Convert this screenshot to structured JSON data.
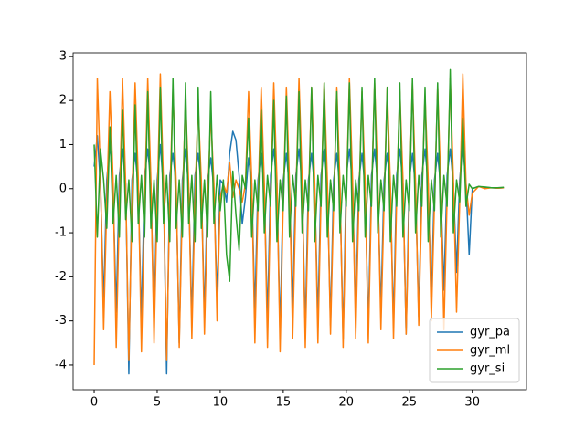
{
  "chart_data": {
    "type": "line",
    "x": [
      0,
      0.25,
      0.5,
      0.75,
      1,
      1.25,
      1.5,
      1.75,
      2,
      2.25,
      2.5,
      2.75,
      3,
      3.25,
      3.5,
      3.75,
      4,
      4.25,
      4.5,
      4.75,
      5,
      5.25,
      5.5,
      5.75,
      6,
      6.25,
      6.5,
      6.75,
      7,
      7.25,
      7.5,
      7.75,
      8,
      8.25,
      8.5,
      8.75,
      9,
      9.25,
      9.5,
      9.75,
      10,
      10.25,
      10.5,
      10.75,
      11,
      11.25,
      11.5,
      11.75,
      12,
      12.25,
      12.5,
      12.75,
      13,
      13.25,
      13.5,
      13.75,
      14,
      14.25,
      14.5,
      14.75,
      15,
      15.25,
      15.5,
      15.75,
      16,
      16.25,
      16.5,
      16.75,
      17,
      17.25,
      17.5,
      17.75,
      18,
      18.25,
      18.5,
      18.75,
      19,
      19.25,
      19.5,
      19.75,
      20,
      20.25,
      20.5,
      20.75,
      21,
      21.25,
      21.5,
      21.75,
      22,
      22.25,
      22.5,
      22.75,
      23,
      23.25,
      23.5,
      23.75,
      24,
      24.25,
      24.5,
      24.75,
      25,
      25.25,
      25.5,
      25.75,
      26,
      26.25,
      26.5,
      26.75,
      27,
      27.25,
      27.5,
      27.75,
      28,
      28.25,
      28.5,
      28.75,
      29,
      29.25,
      29.5,
      29.75,
      30,
      30.5,
      31,
      31.5,
      32,
      32.5
    ],
    "series": [
      {
        "name": "gyr_pa",
        "color": "#1f77b4",
        "values": [
          0.5,
          1.2,
          0.1,
          -2.6,
          0.2,
          1.0,
          0.0,
          -2.8,
          0.3,
          0.9,
          0.1,
          -4.2,
          0.2,
          0.8,
          0.0,
          -3.0,
          0.3,
          0.9,
          0.1,
          -3.1,
          0.2,
          1.0,
          0.0,
          -4.2,
          0.3,
          0.8,
          0.1,
          -3.5,
          0.2,
          0.9,
          0.0,
          -3.0,
          0.3,
          0.8,
          0.1,
          -2.9,
          0.2,
          0.7,
          0.0,
          -2.5,
          0.2,
          0.1,
          -0.3,
          0.8,
          1.3,
          1.1,
          0.3,
          -0.8,
          -0.2,
          0.7,
          0.1,
          -2.8,
          0.2,
          0.8,
          0.0,
          -3.0,
          0.3,
          0.9,
          0.1,
          -3.3,
          0.2,
          0.8,
          0.0,
          -2.7,
          0.3,
          0.9,
          0.1,
          -3.2,
          0.2,
          0.8,
          0.0,
          -3.0,
          0.3,
          0.9,
          0.1,
          -3.1,
          0.2,
          0.8,
          0.0,
          -3.4,
          0.3,
          0.9,
          0.1,
          -3.0,
          0.2,
          0.8,
          0.0,
          -3.2,
          0.3,
          0.9,
          0.1,
          -2.8,
          0.2,
          0.8,
          0.0,
          -3.1,
          0.3,
          0.9,
          0.1,
          -3.3,
          0.2,
          0.8,
          0.0,
          -2.9,
          0.3,
          0.9,
          0.1,
          -2.6,
          0.2,
          0.8,
          0.0,
          -2.3,
          0.3,
          0.9,
          0.1,
          -1.9,
          0.2,
          1.0,
          0.1,
          -1.5,
          0.0,
          0.05,
          0.03,
          0.02,
          0.01,
          0.02
        ]
      },
      {
        "name": "gyr_ml",
        "color": "#ff7f0e",
        "values": [
          -4.0,
          2.5,
          0.3,
          -3.2,
          -0.3,
          2.2,
          0.2,
          -3.6,
          -0.4,
          2.5,
          0.1,
          -3.9,
          -0.3,
          2.4,
          0.2,
          -3.7,
          -0.4,
          2.5,
          0.2,
          -3.5,
          -0.3,
          2.6,
          0.1,
          -3.9,
          -0.2,
          2.2,
          0.2,
          -3.6,
          -0.3,
          2.0,
          0.1,
          -3.4,
          -0.2,
          1.9,
          0.2,
          -3.3,
          -0.3,
          1.7,
          0.1,
          -3.0,
          -0.2,
          0.1,
          -0.1,
          0.6,
          -0.2,
          0.2,
          0.0,
          -0.3,
          0.1,
          2.2,
          0.2,
          -3.5,
          -0.3,
          2.3,
          0.1,
          -3.6,
          -0.2,
          2.4,
          0.2,
          -3.7,
          -0.3,
          2.3,
          0.1,
          -3.4,
          -0.2,
          2.5,
          0.2,
          -3.6,
          -0.3,
          2.3,
          0.1,
          -3.5,
          -0.2,
          2.4,
          0.2,
          -3.3,
          -0.3,
          2.3,
          0.1,
          -3.6,
          -0.2,
          2.5,
          0.2,
          -3.4,
          -0.3,
          2.2,
          0.1,
          -3.5,
          -0.2,
          2.4,
          0.2,
          -3.2,
          -0.3,
          2.3,
          0.1,
          -3.4,
          -0.2,
          2.2,
          0.2,
          -3.3,
          -0.3,
          2.4,
          0.1,
          -3.1,
          -0.2,
          2.1,
          0.2,
          -3.0,
          -0.3,
          2.3,
          0.1,
          -3.2,
          -0.2,
          2.5,
          0.2,
          -2.8,
          -0.3,
          2.6,
          0.1,
          -0.6,
          -0.1,
          0.05,
          0.0,
          0.02,
          0.01,
          0.02
        ]
      },
      {
        "name": "gyr_si",
        "color": "#2ca02c",
        "values": [
          1.0,
          -1.1,
          0.9,
          0.2,
          -0.9,
          1.4,
          -0.8,
          0.3,
          -1.1,
          1.8,
          -0.7,
          0.2,
          -1.2,
          1.9,
          -0.8,
          0.3,
          -1.1,
          2.2,
          -0.9,
          0.2,
          -1.2,
          2.3,
          -0.8,
          0.3,
          -1.2,
          2.5,
          -0.9,
          0.2,
          -1.1,
          2.4,
          -0.8,
          0.3,
          -1.2,
          2.3,
          -0.9,
          0.2,
          -1.1,
          2.2,
          -0.8,
          0.3,
          -0.5,
          0.2,
          -1.5,
          -2.1,
          0.4,
          -0.6,
          -1.4,
          0.3,
          0.0,
          1.6,
          -1.1,
          0.2,
          -0.5,
          1.8,
          -1.0,
          0.3,
          -0.4,
          2.0,
          -1.2,
          0.2,
          -0.5,
          2.1,
          -1.1,
          0.3,
          -0.4,
          2.2,
          -1.0,
          0.2,
          -0.5,
          2.3,
          -1.2,
          0.3,
          -0.4,
          2.4,
          -1.1,
          0.2,
          -0.5,
          2.2,
          -1.0,
          0.3,
          -0.4,
          2.4,
          -1.2,
          0.2,
          -0.5,
          2.3,
          -1.1,
          0.3,
          -0.4,
          2.5,
          -1.0,
          0.2,
          -0.5,
          2.3,
          -1.2,
          0.3,
          -0.4,
          2.4,
          -1.1,
          0.2,
          -0.5,
          2.5,
          -1.0,
          0.3,
          -0.4,
          2.3,
          -1.2,
          0.2,
          -0.5,
          2.4,
          -1.1,
          0.3,
          -0.4,
          2.7,
          -1.0,
          0.2,
          -0.3,
          1.6,
          -0.4,
          0.1,
          0.0,
          0.05,
          0.04,
          0.02,
          0.02,
          0.03
        ]
      }
    ],
    "xlim": [
      -1.67,
      34.3
    ],
    "xticks": [
      0,
      5,
      10,
      15,
      20,
      25,
      30
    ],
    "ylim": [
      -4.56,
      3.08
    ],
    "yticks": [
      -4,
      -3,
      -2,
      -1,
      0,
      1,
      2,
      3
    ],
    "legend": "lower right"
  }
}
